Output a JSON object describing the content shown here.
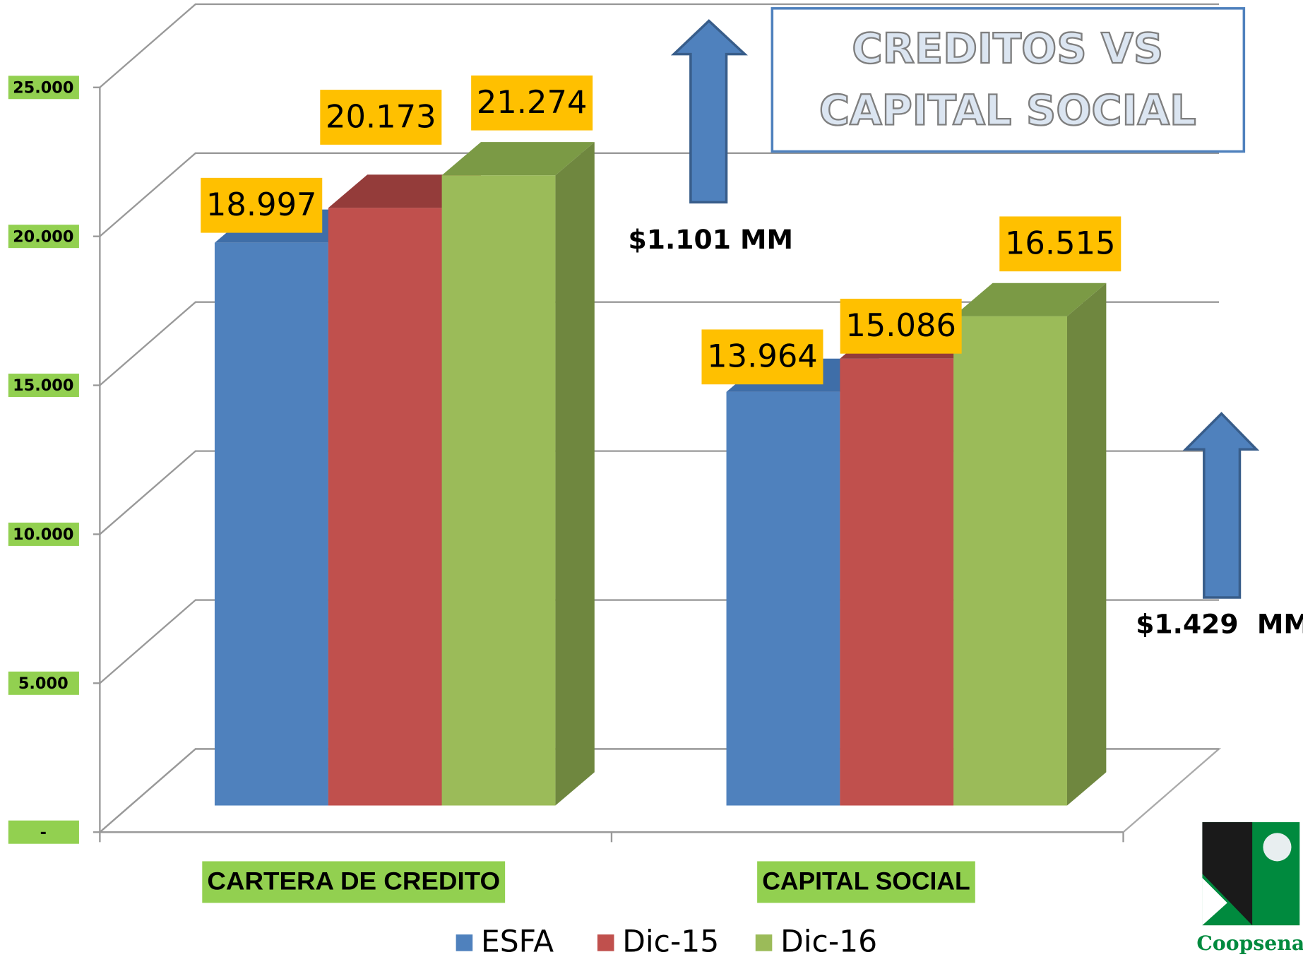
{
  "chart_data": {
    "type": "bar3d",
    "title": [
      "CREDITOS VS",
      "CAPITAL SOCIAL"
    ],
    "categories": [
      "CARTERA DE CREDITO",
      "CAPITAL SOCIAL"
    ],
    "series": [
      {
        "name": "ESFA",
        "color": "#4F81BD",
        "values": [
          18997,
          13964
        ],
        "value_labels": [
          "18.997",
          "13.964"
        ]
      },
      {
        "name": "Dic-15",
        "color": "#C0504D",
        "values": [
          20173,
          15086
        ],
        "value_labels": [
          "20.173",
          "15.086"
        ]
      },
      {
        "name": "Dic-16",
        "color": "#9BBB59",
        "values": [
          21274,
          16515
        ],
        "value_labels": [
          "21.274",
          "16.515"
        ]
      }
    ],
    "ylim": [
      0,
      25000
    ],
    "yticks": [
      {
        "value": 0,
        "label": "-"
      },
      {
        "value": 5000,
        "label": "5.000"
      },
      {
        "value": 10000,
        "label": "10.000"
      },
      {
        "value": 15000,
        "label": "15.000"
      },
      {
        "value": 20000,
        "label": "20.000"
      },
      {
        "value": 25000,
        "label": "25.000"
      }
    ],
    "grid": true,
    "legend": "bottom",
    "annotations": [
      "$1.101 MM",
      "$1.429  MM"
    ],
    "logo": "Coopsena"
  }
}
